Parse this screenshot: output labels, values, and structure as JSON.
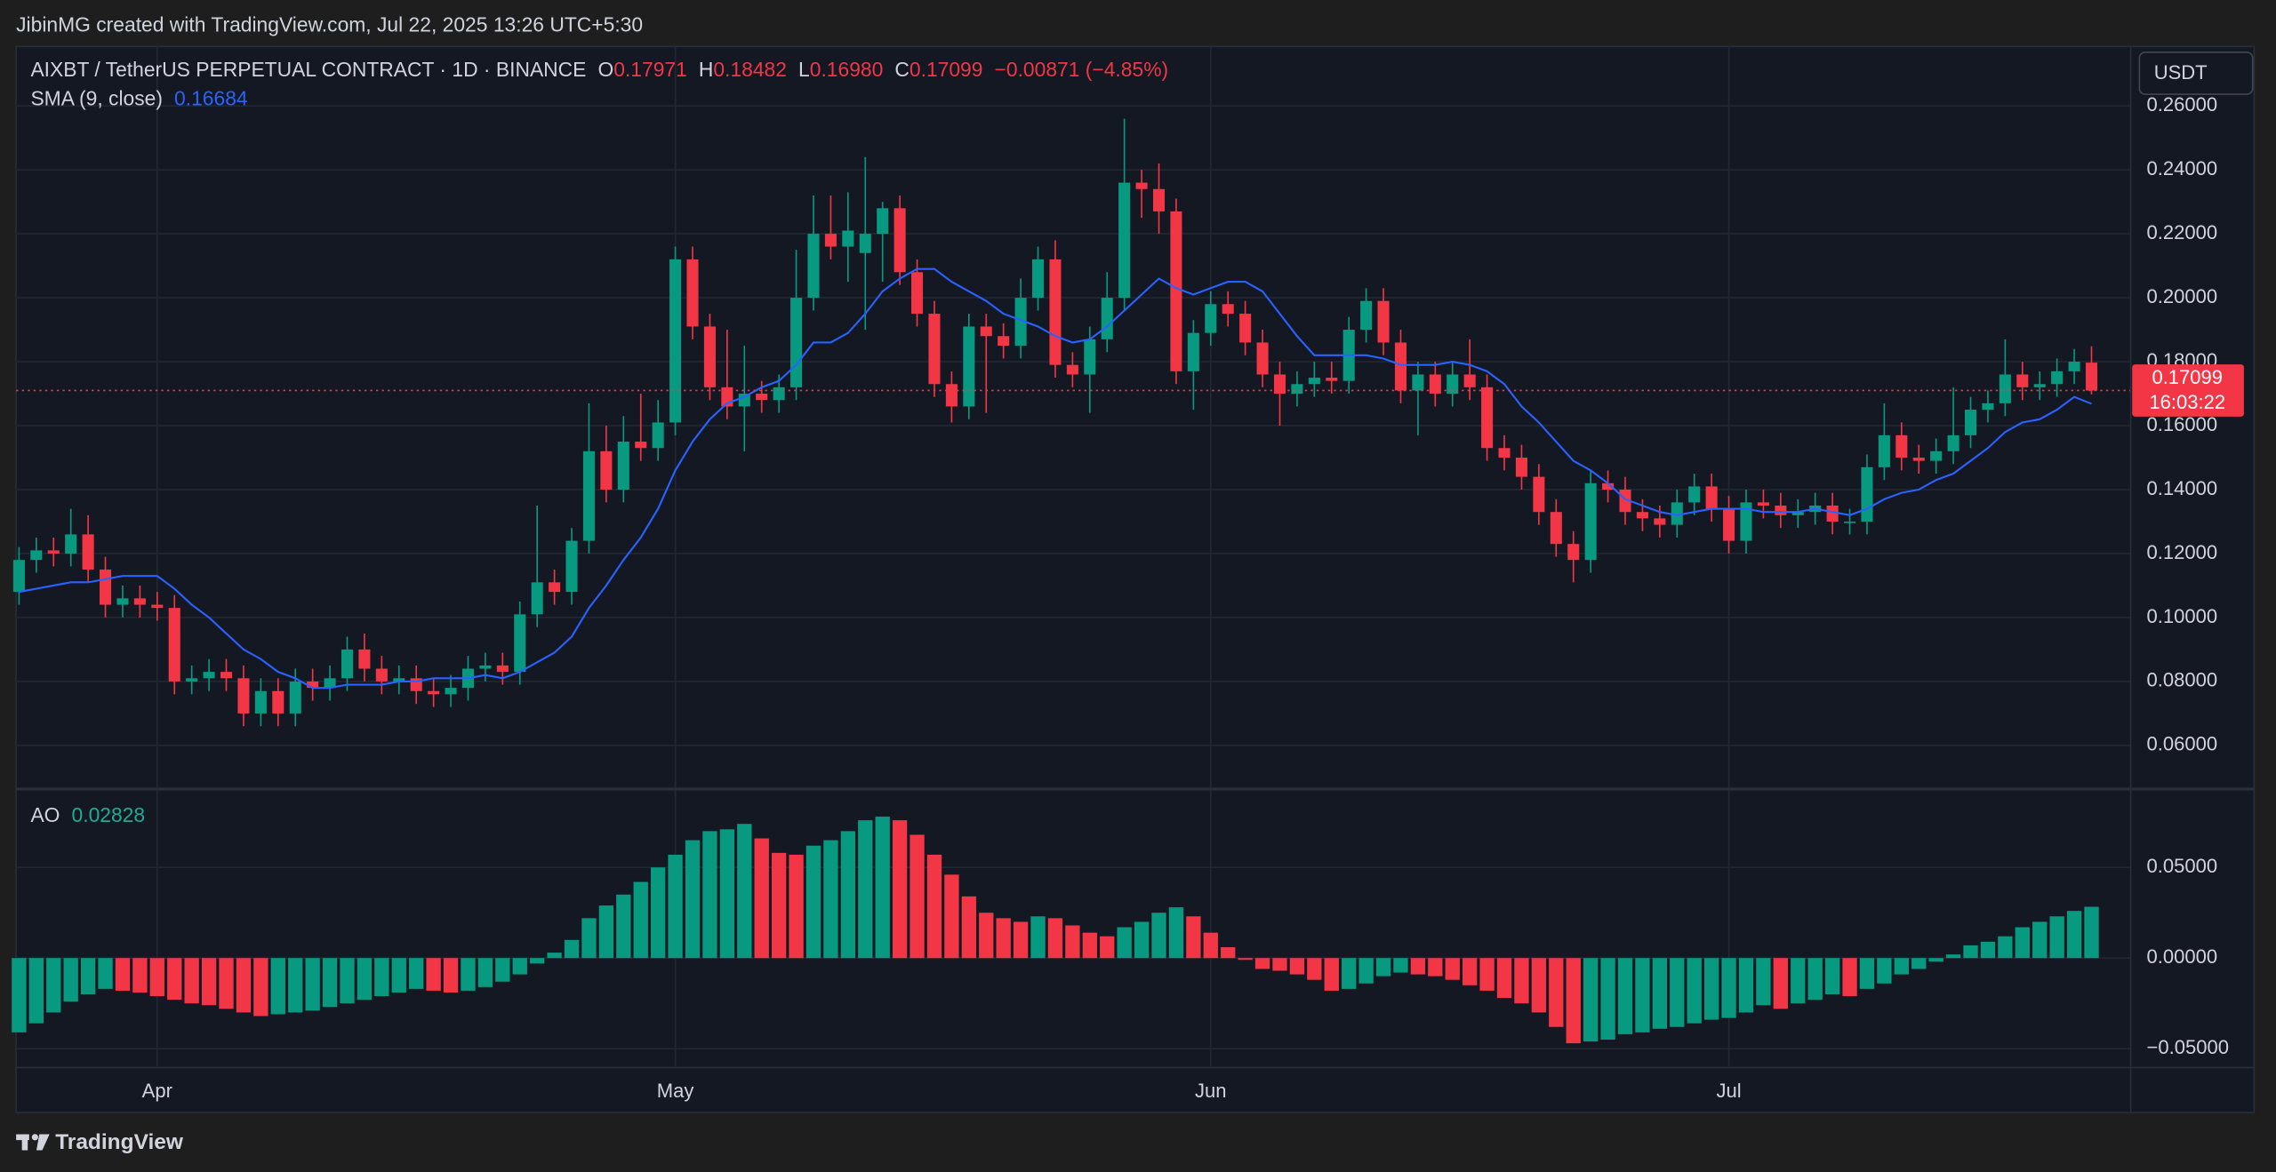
{
  "header": {
    "credit": "JibinMG created with TradingView.com, Jul 22, 2025 13:26 UTC+5:30",
    "brand": "TradingView"
  },
  "chart_data": {
    "type": "candlestick",
    "title": "AIXBT / TetherUS PERPETUAL CONTRACT · 1D · BINANCE",
    "ohlc_names": [
      "O",
      "H",
      "L",
      "C"
    ],
    "low_label": "0.16980",
    "change_label": "−0.00871 (−4.85%)",
    "currency": "USDT",
    "countdown": "16:03:22",
    "up_color": "#089981",
    "down_color": "#f23645",
    "grid": true,
    "categories": [
      null,
      null,
      null,
      null,
      null,
      null,
      null,
      null,
      "Apr",
      null,
      null,
      null,
      null,
      null,
      null,
      null,
      null,
      null,
      null,
      null,
      null,
      null,
      null,
      null,
      null,
      null,
      null,
      null,
      null,
      null,
      null,
      null,
      null,
      null,
      null,
      null,
      null,
      null,
      "May",
      null,
      null,
      null,
      null,
      null,
      null,
      null,
      null,
      null,
      null,
      null,
      null,
      null,
      null,
      null,
      null,
      null,
      null,
      null,
      null,
      null,
      null,
      null,
      null,
      null,
      null,
      null,
      null,
      null,
      null,
      "Jun",
      null,
      null,
      null,
      null,
      null,
      null,
      null,
      null,
      null,
      null,
      null,
      null,
      null,
      null,
      null,
      null,
      null,
      null,
      null,
      null,
      null,
      null,
      null,
      null,
      null,
      null,
      null,
      null,
      null,
      "Jul",
      null,
      null,
      null,
      null,
      null,
      null,
      null,
      null,
      null,
      null,
      null,
      null,
      null,
      null,
      null,
      null,
      null,
      null,
      null,
      null,
      null
    ],
    "open": [
      0.108,
      0.118,
      0.121,
      0.12,
      0.126,
      0.115,
      0.104,
      0.106,
      0.104,
      0.103,
      0.08,
      0.081,
      0.083,
      0.081,
      0.07,
      0.077,
      0.07,
      0.08,
      0.078,
      0.081,
      0.09,
      0.084,
      0.08,
      0.081,
      0.077,
      0.076,
      0.078,
      0.084,
      0.085,
      0.083,
      0.101,
      0.111,
      0.108,
      0.124,
      0.152,
      0.14,
      0.155,
      0.153,
      0.161,
      0.212,
      0.191,
      0.172,
      0.166,
      0.17,
      0.168,
      0.172,
      0.2,
      0.22,
      0.216,
      0.214,
      0.22,
      0.228,
      0.208,
      0.195,
      0.173,
      0.166,
      0.191,
      0.188,
      0.185,
      0.2,
      0.212,
      0.179,
      0.176,
      0.187,
      0.2,
      0.236,
      0.234,
      0.227,
      0.177,
      0.189,
      0.198,
      0.195,
      0.186,
      0.176,
      0.17,
      0.173,
      0.175,
      0.174,
      0.19,
      0.199,
      0.186,
      0.171,
      0.176,
      0.17,
      0.176,
      0.172,
      0.153,
      0.15,
      0.144,
      0.133,
      0.123,
      0.118,
      0.142,
      0.14,
      0.133,
      0.131,
      0.129,
      0.136,
      0.141,
      0.134,
      0.124,
      0.136,
      0.135,
      0.132,
      0.133,
      0.135,
      0.13,
      0.13,
      0.147,
      0.157,
      0.15,
      0.149,
      0.152,
      0.157,
      0.165,
      0.167,
      0.176,
      0.172,
      0.173,
      0.177,
      0.17971
    ],
    "high": [
      0.122,
      0.125,
      0.125,
      0.134,
      0.132,
      0.119,
      0.11,
      0.11,
      0.108,
      0.107,
      0.085,
      0.087,
      0.087,
      0.085,
      0.081,
      0.081,
      0.084,
      0.084,
      0.085,
      0.094,
      0.095,
      0.088,
      0.085,
      0.085,
      0.081,
      0.082,
      0.088,
      0.089,
      0.089,
      0.105,
      0.135,
      0.115,
      0.128,
      0.167,
      0.16,
      0.163,
      0.17,
      0.168,
      0.216,
      0.216,
      0.195,
      0.19,
      0.185,
      0.174,
      0.176,
      0.215,
      0.232,
      0.232,
      0.233,
      0.244,
      0.23,
      0.232,
      0.212,
      0.199,
      0.177,
      0.195,
      0.195,
      0.192,
      0.206,
      0.216,
      0.218,
      0.183,
      0.191,
      0.208,
      0.256,
      0.24,
      0.242,
      0.231,
      0.193,
      0.202,
      0.202,
      0.199,
      0.19,
      0.18,
      0.177,
      0.18,
      0.18,
      0.194,
      0.203,
      0.203,
      0.19,
      0.18,
      0.18,
      0.18,
      0.187,
      0.176,
      0.157,
      0.154,
      0.148,
      0.137,
      0.127,
      0.146,
      0.146,
      0.144,
      0.137,
      0.135,
      0.14,
      0.145,
      0.145,
      0.138,
      0.14,
      0.14,
      0.139,
      0.137,
      0.139,
      0.139,
      0.134,
      0.151,
      0.167,
      0.161,
      0.154,
      0.156,
      0.172,
      0.169,
      0.171,
      0.187,
      0.18,
      0.177,
      0.181,
      0.184,
      0.18482
    ],
    "low": [
      0.104,
      0.114,
      0.116,
      0.116,
      0.111,
      0.1,
      0.1,
      0.1,
      0.099,
      0.076,
      0.076,
      0.077,
      0.077,
      0.066,
      0.066,
      0.066,
      0.066,
      0.074,
      0.074,
      0.077,
      0.08,
      0.076,
      0.076,
      0.073,
      0.072,
      0.072,
      0.074,
      0.08,
      0.079,
      0.079,
      0.097,
      0.104,
      0.104,
      0.12,
      0.136,
      0.136,
      0.149,
      0.149,
      0.157,
      0.187,
      0.168,
      0.162,
      0.152,
      0.164,
      0.164,
      0.168,
      0.196,
      0.212,
      0.205,
      0.19,
      0.205,
      0.204,
      0.191,
      0.169,
      0.161,
      0.162,
      0.164,
      0.181,
      0.181,
      0.196,
      0.175,
      0.172,
      0.164,
      0.183,
      0.196,
      0.225,
      0.22,
      0.173,
      0.165,
      0.185,
      0.191,
      0.182,
      0.172,
      0.16,
      0.166,
      0.169,
      0.17,
      0.17,
      0.186,
      0.182,
      0.167,
      0.157,
      0.166,
      0.166,
      0.168,
      0.149,
      0.146,
      0.14,
      0.129,
      0.119,
      0.111,
      0.114,
      0.136,
      0.129,
      0.127,
      0.125,
      0.125,
      0.132,
      0.13,
      0.12,
      0.12,
      0.131,
      0.128,
      0.128,
      0.129,
      0.126,
      0.126,
      0.126,
      0.143,
      0.146,
      0.145,
      0.145,
      0.148,
      0.153,
      0.161,
      0.163,
      0.168,
      0.168,
      0.169,
      0.173,
      0.1698
    ],
    "close": [
      0.118,
      0.121,
      0.12,
      0.126,
      0.115,
      0.104,
      0.106,
      0.104,
      0.103,
      0.08,
      0.081,
      0.083,
      0.081,
      0.07,
      0.077,
      0.07,
      0.08,
      0.078,
      0.081,
      0.09,
      0.084,
      0.08,
      0.081,
      0.077,
      0.076,
      0.078,
      0.084,
      0.085,
      0.083,
      0.101,
      0.111,
      0.108,
      0.124,
      0.152,
      0.14,
      0.155,
      0.153,
      0.161,
      0.212,
      0.191,
      0.172,
      0.166,
      0.17,
      0.168,
      0.172,
      0.2,
      0.22,
      0.216,
      0.221,
      0.22,
      0.228,
      0.208,
      0.195,
      0.173,
      0.166,
      0.191,
      0.188,
      0.185,
      0.2,
      0.212,
      0.179,
      0.176,
      0.187,
      0.2,
      0.236,
      0.234,
      0.227,
      0.177,
      0.189,
      0.198,
      0.195,
      0.186,
      0.176,
      0.17,
      0.173,
      0.175,
      0.174,
      0.19,
      0.199,
      0.186,
      0.171,
      0.176,
      0.17,
      0.176,
      0.172,
      0.153,
      0.15,
      0.144,
      0.133,
      0.123,
      0.118,
      0.142,
      0.14,
      0.133,
      0.131,
      0.129,
      0.136,
      0.141,
      0.134,
      0.124,
      0.136,
      0.135,
      0.132,
      0.133,
      0.135,
      0.13,
      0.13,
      0.147,
      0.157,
      0.15,
      0.149,
      0.152,
      0.157,
      0.165,
      0.167,
      0.176,
      0.172,
      0.173,
      0.177,
      0.18,
      0.17099
    ],
    "ylim": [
      0.0468,
      0.2786
    ],
    "yticks": [
      {
        "value": 0.06,
        "label": "0.06000"
      },
      {
        "value": 0.08,
        "label": "0.08000"
      },
      {
        "value": 0.1,
        "label": "0.10000"
      },
      {
        "value": 0.12,
        "label": "0.12000"
      },
      {
        "value": 0.14,
        "label": "0.14000"
      },
      {
        "value": 0.16,
        "label": "0.16000"
      },
      {
        "value": 0.18,
        "label": "0.18000"
      },
      {
        "value": 0.2,
        "label": "0.20000"
      },
      {
        "value": 0.22,
        "label": "0.22000"
      },
      {
        "value": 0.24,
        "label": "0.24000"
      },
      {
        "value": 0.26,
        "label": "0.26000"
      }
    ],
    "sma": {
      "name": "SMA (9, close)",
      "color": "#2962ff",
      "values": [
        0.108,
        0.109,
        0.11,
        0.111,
        0.111,
        0.112,
        0.113,
        0.113,
        0.113,
        0.109,
        0.104,
        0.1,
        0.095,
        0.09,
        0.087,
        0.083,
        0.081,
        0.078,
        0.078,
        0.079,
        0.079,
        0.079,
        0.08,
        0.08,
        0.081,
        0.081,
        0.081,
        0.082,
        0.081,
        0.083,
        0.086,
        0.089,
        0.094,
        0.103,
        0.11,
        0.118,
        0.125,
        0.134,
        0.146,
        0.155,
        0.162,
        0.167,
        0.169,
        0.172,
        0.174,
        0.179,
        0.186,
        0.186,
        0.189,
        0.195,
        0.202,
        0.206,
        0.209,
        0.209,
        0.205,
        0.202,
        0.199,
        0.195,
        0.193,
        0.191,
        0.188,
        0.186,
        0.187,
        0.191,
        0.196,
        0.201,
        0.206,
        0.203,
        0.201,
        0.203,
        0.205,
        0.205,
        0.202,
        0.195,
        0.188,
        0.182,
        0.182,
        0.182,
        0.182,
        0.181,
        0.179,
        0.179,
        0.179,
        0.18,
        0.179,
        0.177,
        0.173,
        0.166,
        0.161,
        0.155,
        0.149,
        0.146,
        0.142,
        0.137,
        0.135,
        0.133,
        0.132,
        0.133,
        0.134,
        0.134,
        0.134,
        0.133,
        0.133,
        0.133,
        0.134,
        0.133,
        0.132,
        0.134,
        0.137,
        0.139,
        0.14,
        0.143,
        0.145,
        0.149,
        0.153,
        0.158,
        0.161,
        0.162,
        0.165,
        0.169,
        0.16684
      ]
    },
    "ao": {
      "name": "AO",
      "legend_color": "#22ab94",
      "ylim": [
        -0.0596,
        0.0924
      ],
      "yticks": [
        {
          "value": -0.05,
          "label": "−0.05000"
        },
        {
          "value": 0,
          "label": "0.00000"
        },
        {
          "value": 0.05,
          "label": "0.05000"
        }
      ],
      "values": [
        -0.041,
        -0.036,
        -0.03,
        -0.024,
        -0.02,
        -0.017,
        -0.018,
        -0.019,
        -0.021,
        -0.023,
        -0.025,
        -0.026,
        -0.028,
        -0.03,
        -0.032,
        -0.031,
        -0.03,
        -0.029,
        -0.027,
        -0.025,
        -0.023,
        -0.021,
        -0.019,
        -0.017,
        -0.018,
        -0.019,
        -0.018,
        -0.016,
        -0.013,
        -0.009,
        -0.003,
        0.003,
        0.01,
        0.022,
        0.029,
        0.035,
        0.042,
        0.05,
        0.057,
        0.065,
        0.07,
        0.071,
        0.074,
        0.066,
        0.058,
        0.057,
        0.062,
        0.065,
        0.07,
        0.076,
        0.078,
        0.076,
        0.068,
        0.057,
        0.046,
        0.034,
        0.025,
        0.022,
        0.02,
        0.023,
        0.022,
        0.018,
        0.014,
        0.012,
        0.017,
        0.02,
        0.025,
        0.028,
        0.023,
        0.014,
        0.006,
        -0.001,
        -0.006,
        -0.007,
        -0.009,
        -0.012,
        -0.018,
        -0.017,
        -0.014,
        -0.01,
        -0.008,
        -0.009,
        -0.01,
        -0.012,
        -0.015,
        -0.018,
        -0.022,
        -0.025,
        -0.03,
        -0.038,
        -0.047,
        -0.046,
        -0.045,
        -0.042,
        -0.041,
        -0.039,
        -0.038,
        -0.036,
        -0.034,
        -0.033,
        -0.03,
        -0.026,
        -0.028,
        -0.025,
        -0.023,
        -0.02,
        -0.021,
        -0.017,
        -0.014,
        -0.009,
        -0.006,
        -0.002,
        0.002,
        0.007,
        0.009,
        0.012,
        0.017,
        0.02,
        0.023,
        0.026,
        0.02828
      ]
    }
  }
}
